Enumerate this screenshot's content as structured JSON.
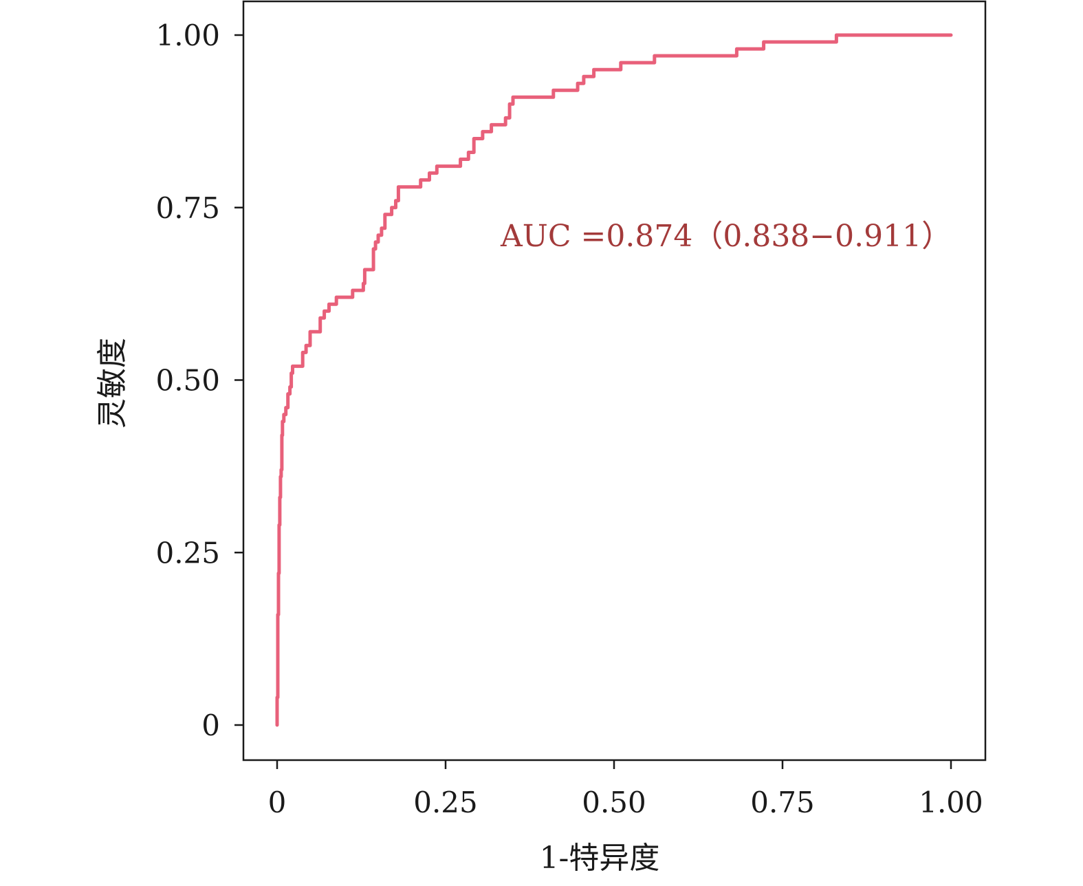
{
  "chart_data": {
    "type": "line",
    "title": "",
    "xlabel": "1-特异度",
    "ylabel": "灵敏度",
    "xlim": [
      0,
      1
    ],
    "ylim": [
      0,
      1
    ],
    "xticks": [
      {
        "value": 0,
        "label": "0"
      },
      {
        "value": 0.25,
        "label": "0.25"
      },
      {
        "value": 0.5,
        "label": "0.50"
      },
      {
        "value": 0.75,
        "label": "0.75"
      },
      {
        "value": 1.0,
        "label": "1.00"
      }
    ],
    "yticks": [
      {
        "value": 0,
        "label": "0"
      },
      {
        "value": 0.25,
        "label": "0.25"
      },
      {
        "value": 0.5,
        "label": "0.50"
      },
      {
        "value": 0.75,
        "label": "0.75"
      },
      {
        "value": 1.0,
        "label": "1.00"
      }
    ],
    "grid": false,
    "annotation": "AUC =0.874（0.838−0.911）",
    "colors": {
      "curve": "#e8607a",
      "annotation": "#a33a3a",
      "axis": "#1a1a1a"
    },
    "series": [
      {
        "x": [
          0.0,
          0.0,
          0.001,
          0.001,
          0.002,
          0.002,
          0.003,
          0.003,
          0.004,
          0.004,
          0.005,
          0.005,
          0.006,
          0.006,
          0.007,
          0.007,
          0.008,
          0.008,
          0.01,
          0.01,
          0.013,
          0.013,
          0.016,
          0.016,
          0.019,
          0.019,
          0.021,
          0.021,
          0.023,
          0.023,
          0.026,
          0.026,
          0.038,
          0.038,
          0.043,
          0.043,
          0.049,
          0.049,
          0.055,
          0.055,
          0.064,
          0.064,
          0.07,
          0.07,
          0.077,
          0.077,
          0.088,
          0.088,
          0.112,
          0.112,
          0.128,
          0.128,
          0.13,
          0.13,
          0.143,
          0.143,
          0.146,
          0.146,
          0.15,
          0.15,
          0.155,
          0.155,
          0.16,
          0.16,
          0.17,
          0.17,
          0.176,
          0.176,
          0.18,
          0.18,
          0.185,
          0.185,
          0.213,
          0.213,
          0.226,
          0.226,
          0.237,
          0.237,
          0.272,
          0.272,
          0.284,
          0.284,
          0.292,
          0.292,
          0.305,
          0.305,
          0.318,
          0.318,
          0.339,
          0.339,
          0.345,
          0.345,
          0.35,
          0.35,
          0.41,
          0.41,
          0.446,
          0.446,
          0.455,
          0.455,
          0.47,
          0.47,
          0.51,
          0.51,
          0.56,
          0.56,
          0.682,
          0.682,
          0.722,
          0.722,
          0.83,
          0.83,
          1.0
        ],
        "y": [
          0.0,
          0.04,
          0.04,
          0.16,
          0.16,
          0.22,
          0.22,
          0.29,
          0.29,
          0.33,
          0.33,
          0.36,
          0.36,
          0.37,
          0.37,
          0.42,
          0.42,
          0.44,
          0.44,
          0.45,
          0.45,
          0.46,
          0.46,
          0.48,
          0.48,
          0.49,
          0.49,
          0.51,
          0.51,
          0.52,
          0.52,
          0.52,
          0.52,
          0.54,
          0.54,
          0.55,
          0.55,
          0.57,
          0.57,
          0.57,
          0.57,
          0.59,
          0.59,
          0.6,
          0.6,
          0.61,
          0.61,
          0.62,
          0.62,
          0.63,
          0.63,
          0.64,
          0.64,
          0.66,
          0.66,
          0.69,
          0.69,
          0.7,
          0.7,
          0.71,
          0.71,
          0.72,
          0.72,
          0.74,
          0.74,
          0.75,
          0.75,
          0.76,
          0.76,
          0.78,
          0.78,
          0.78,
          0.78,
          0.79,
          0.79,
          0.8,
          0.8,
          0.81,
          0.81,
          0.82,
          0.82,
          0.83,
          0.83,
          0.85,
          0.85,
          0.86,
          0.86,
          0.87,
          0.87,
          0.88,
          0.88,
          0.9,
          0.9,
          0.91,
          0.91,
          0.92,
          0.92,
          0.93,
          0.93,
          0.94,
          0.94,
          0.95,
          0.95,
          0.96,
          0.96,
          0.97,
          0.97,
          0.98,
          0.98,
          0.99,
          0.99,
          1.0,
          1.0
        ]
      }
    ]
  }
}
